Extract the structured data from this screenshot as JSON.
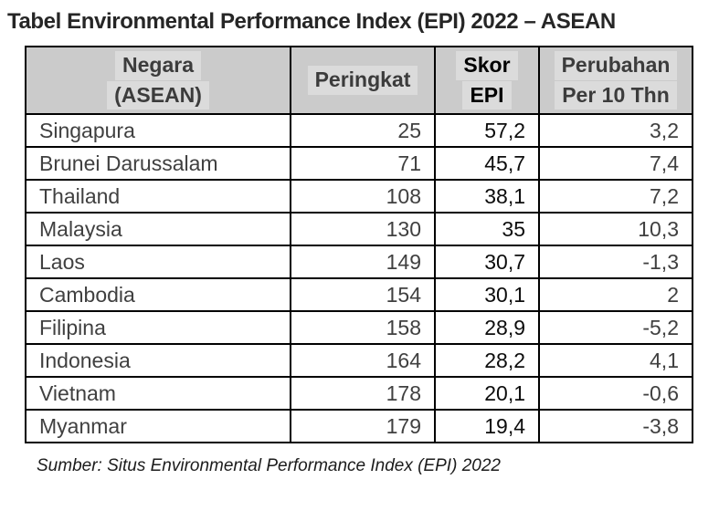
{
  "title": "Tabel Environmental Performance Index (EPI) 2022 – ASEAN",
  "table": {
    "columns": [
      {
        "id": "negara",
        "label_lines": [
          "Negara",
          "(ASEAN)"
        ]
      },
      {
        "id": "peringkat",
        "label_lines": [
          "Peringkat"
        ]
      },
      {
        "id": "skor",
        "label_lines": [
          "Skor",
          "EPI"
        ]
      },
      {
        "id": "perubahan",
        "label_lines": [
          "Perubahan",
          "Per 10 Thn"
        ]
      }
    ],
    "rows": [
      {
        "negara": "Singapura",
        "peringkat": "25",
        "skor": "57,2",
        "perubahan": "3,2"
      },
      {
        "negara": "Brunei Darussalam",
        "peringkat": "71",
        "skor": "45,7",
        "perubahan": "7,4"
      },
      {
        "negara": "Thailand",
        "peringkat": "108",
        "skor": "38,1",
        "perubahan": "7,2"
      },
      {
        "negara": "Malaysia",
        "peringkat": "130",
        "skor": "35",
        "perubahan": "10,3"
      },
      {
        "negara": "Laos",
        "peringkat": "149",
        "skor": "30,7",
        "perubahan": "-1,3"
      },
      {
        "negara": "Cambodia",
        "peringkat": "154",
        "skor": "30,1",
        "perubahan": "2"
      },
      {
        "negara": "Filipina",
        "peringkat": "158",
        "skor": "28,9",
        "perubahan": "-5,2"
      },
      {
        "negara": "Indonesia",
        "peringkat": "164",
        "skor": "28,2",
        "perubahan": "4,1"
      },
      {
        "negara": "Vietnam",
        "peringkat": "178",
        "skor": "20,1",
        "perubahan": "-0,6"
      },
      {
        "negara": "Myanmar",
        "peringkat": "179",
        "skor": "19,4",
        "perubahan": "-3,8"
      }
    ]
  },
  "source": "Sumber: Situs Environmental Performance Index (EPI) 2022",
  "colors": {
    "header_bg": "#cbcbcb",
    "header_text_highlight": "#dbdbdb",
    "border": "#000000",
    "text_gray": "#404040",
    "text_black": "#0d0d0d",
    "title_text": "#262626"
  }
}
